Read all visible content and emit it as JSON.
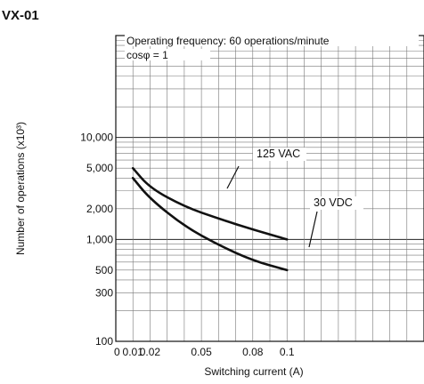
{
  "chart_data": {
    "type": "line",
    "title": "VX-01",
    "annotations": [
      "Operating frequency: 60 operations/minute",
      "cosφ = 1"
    ],
    "xlabel": "Switching current (A)",
    "ylabel": "Number of operations (x10³)",
    "x_ticks": [
      "0",
      "0.01",
      "0.02",
      "0.05",
      "0.08",
      "0.1"
    ],
    "y_scale": "log",
    "y_ticks": [
      "100",
      "300",
      "500",
      "1,000",
      "2,000",
      "5,000",
      "10,000"
    ],
    "xlim": [
      0,
      0.18
    ],
    "ylim": [
      100,
      100000
    ],
    "grid": true,
    "series": [
      {
        "name": "125 VAC",
        "x": [
          0.01,
          0.02,
          0.04,
          0.06,
          0.08,
          0.1
        ],
        "y": [
          5000,
          3200,
          2100,
          1600,
          1250,
          1000
        ]
      },
      {
        "name": "30 VDC",
        "x": [
          0.01,
          0.02,
          0.04,
          0.06,
          0.08,
          0.1
        ],
        "y": [
          4000,
          2500,
          1350,
          880,
          620,
          500
        ]
      }
    ]
  }
}
